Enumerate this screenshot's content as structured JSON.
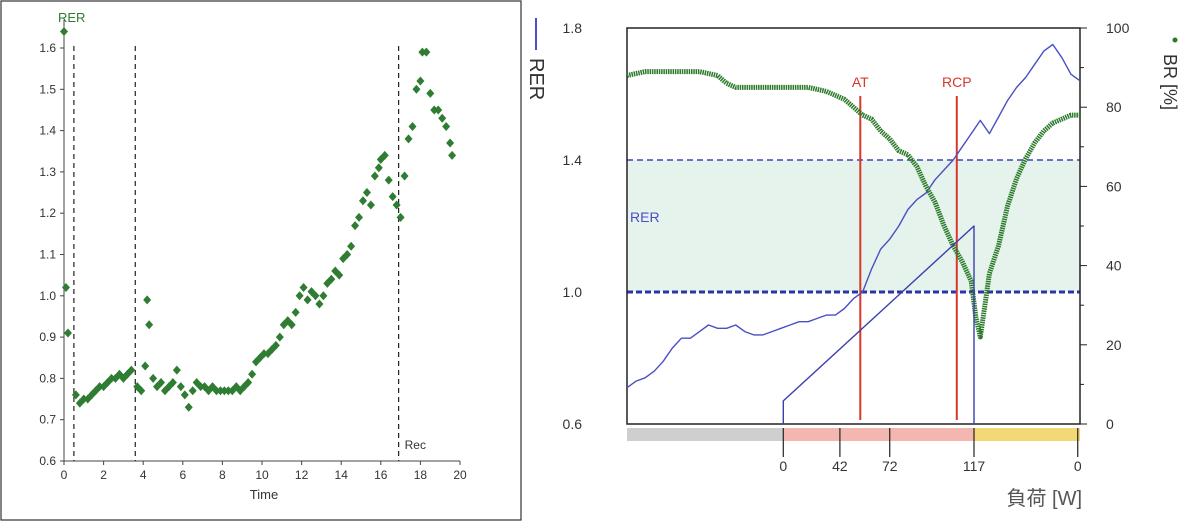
{
  "chart_data": [
    {
      "type": "scatter",
      "title": "",
      "xlabel": "Time",
      "ylabel": "",
      "xlim": [
        0,
        20
      ],
      "ylim": [
        0.6,
        1.65
      ],
      "x_ticks": [
        "0",
        "2",
        "4",
        "6",
        "8",
        "10",
        "12",
        "14",
        "16",
        "18",
        "20"
      ],
      "y_ticks": [
        "0.6",
        "0.7",
        "0.8",
        "0.9",
        "1.0",
        "1.1",
        "1.2",
        "1.3",
        "1.4",
        "1.5",
        "1.6"
      ],
      "series": [
        {
          "name": "RER",
          "color": "#2e7d32",
          "points": [
            [
              0.0,
              1.64
            ],
            [
              0.1,
              1.02
            ],
            [
              0.2,
              0.91
            ],
            [
              0.6,
              0.76
            ],
            [
              0.8,
              0.74
            ],
            [
              1.0,
              0.75
            ],
            [
              1.2,
              0.75
            ],
            [
              1.4,
              0.76
            ],
            [
              1.6,
              0.77
            ],
            [
              1.8,
              0.78
            ],
            [
              2.0,
              0.78
            ],
            [
              2.2,
              0.79
            ],
            [
              2.4,
              0.8
            ],
            [
              2.6,
              0.8
            ],
            [
              2.8,
              0.81
            ],
            [
              3.0,
              0.8
            ],
            [
              3.2,
              0.81
            ],
            [
              3.4,
              0.82
            ],
            [
              3.7,
              0.78
            ],
            [
              3.9,
              0.77
            ],
            [
              4.1,
              0.83
            ],
            [
              4.2,
              0.99
            ],
            [
              4.3,
              0.93
            ],
            [
              4.5,
              0.8
            ],
            [
              4.7,
              0.78
            ],
            [
              4.9,
              0.79
            ],
            [
              5.1,
              0.77
            ],
            [
              5.3,
              0.78
            ],
            [
              5.5,
              0.79
            ],
            [
              5.7,
              0.82
            ],
            [
              5.9,
              0.78
            ],
            [
              6.1,
              0.76
            ],
            [
              6.3,
              0.73
            ],
            [
              6.5,
              0.77
            ],
            [
              6.7,
              0.79
            ],
            [
              6.9,
              0.78
            ],
            [
              7.1,
              0.78
            ],
            [
              7.3,
              0.77
            ],
            [
              7.5,
              0.78
            ],
            [
              7.7,
              0.77
            ],
            [
              7.9,
              0.77
            ],
            [
              8.1,
              0.77
            ],
            [
              8.3,
              0.77
            ],
            [
              8.5,
              0.77
            ],
            [
              8.7,
              0.78
            ],
            [
              8.9,
              0.77
            ],
            [
              9.1,
              0.78
            ],
            [
              9.3,
              0.79
            ],
            [
              9.5,
              0.81
            ],
            [
              9.7,
              0.84
            ],
            [
              9.9,
              0.85
            ],
            [
              10.1,
              0.86
            ],
            [
              10.3,
              0.86
            ],
            [
              10.5,
              0.87
            ],
            [
              10.7,
              0.88
            ],
            [
              10.9,
              0.9
            ],
            [
              11.1,
              0.93
            ],
            [
              11.3,
              0.94
            ],
            [
              11.5,
              0.93
            ],
            [
              11.7,
              0.96
            ],
            [
              11.9,
              1.0
            ],
            [
              12.1,
              1.02
            ],
            [
              12.3,
              0.99
            ],
            [
              12.5,
              1.01
            ],
            [
              12.7,
              1.0
            ],
            [
              12.9,
              0.98
            ],
            [
              13.1,
              1.0
            ],
            [
              13.3,
              1.03
            ],
            [
              13.5,
              1.04
            ],
            [
              13.7,
              1.06
            ],
            [
              13.9,
              1.05
            ],
            [
              14.1,
              1.09
            ],
            [
              14.3,
              1.1
            ],
            [
              14.5,
              1.12
            ],
            [
              14.7,
              1.17
            ],
            [
              14.9,
              1.19
            ],
            [
              15.1,
              1.23
            ],
            [
              15.3,
              1.25
            ],
            [
              15.5,
              1.22
            ],
            [
              15.7,
              1.29
            ],
            [
              15.9,
              1.31
            ],
            [
              16.0,
              1.33
            ],
            [
              16.2,
              1.34
            ],
            [
              16.4,
              1.28
            ],
            [
              16.6,
              1.24
            ],
            [
              16.8,
              1.22
            ],
            [
              17.0,
              1.19
            ],
            [
              17.2,
              1.29
            ],
            [
              17.4,
              1.38
            ],
            [
              17.6,
              1.41
            ],
            [
              17.8,
              1.5
            ],
            [
              18.0,
              1.52
            ],
            [
              18.1,
              1.59
            ],
            [
              18.3,
              1.59
            ],
            [
              18.5,
              1.49
            ],
            [
              18.7,
              1.45
            ],
            [
              18.9,
              1.45
            ],
            [
              19.1,
              1.43
            ],
            [
              19.3,
              1.41
            ],
            [
              19.5,
              1.37
            ],
            [
              19.6,
              1.34
            ]
          ]
        }
      ],
      "vlines": [
        {
          "x": 0.5,
          "label": ""
        },
        {
          "x": 3.6,
          "label": ""
        },
        {
          "x": 16.9,
          "label": "Rec"
        }
      ],
      "series_label": "RER",
      "grid": false
    },
    {
      "type": "line",
      "title": "",
      "xlabel": "負荷 [W]",
      "ylabel_left": "RER",
      "ylabel_right": "BR [%]",
      "ylim_left": [
        0.6,
        1.8
      ],
      "ylim_right": [
        0,
        100
      ],
      "y_ticks_left": [
        "0.6",
        "1.0",
        "1.4",
        "1.8"
      ],
      "y_ticks_right": [
        "0",
        "20",
        "40",
        "60",
        "80",
        "100"
      ],
      "x_ticks": [
        {
          "label": "0",
          "t": 0.345
        },
        {
          "label": "42",
          "t": 0.47
        },
        {
          "label": "72",
          "t": 0.58
        },
        {
          "label": "117",
          "t": 0.766
        },
        {
          "label": "0",
          "t": 0.995
        }
      ],
      "reference_band": {
        "label": "RER",
        "from": 1.0,
        "to": 1.4
      },
      "phase_bar": [
        {
          "from": 0.0,
          "to": 0.345,
          "color": "#cfcfcf"
        },
        {
          "from": 0.345,
          "to": 0.766,
          "color": "#f4b6b0"
        },
        {
          "from": 0.766,
          "to": 1.0,
          "color": "#f3d878"
        }
      ],
      "thresholds": [
        {
          "label": "AT",
          "t": 0.515,
          "color": "#d9362c"
        },
        {
          "label": "RCP",
          "t": 0.728,
          "color": "#d9362c"
        }
      ],
      "series": [
        {
          "name": "RER",
          "axis": "left",
          "color": "#4a4fc4",
          "points": [
            [
              0.0,
              0.71
            ],
            [
              0.02,
              0.73
            ],
            [
              0.04,
              0.74
            ],
            [
              0.06,
              0.76
            ],
            [
              0.08,
              0.79
            ],
            [
              0.1,
              0.83
            ],
            [
              0.12,
              0.86
            ],
            [
              0.14,
              0.86
            ],
            [
              0.16,
              0.88
            ],
            [
              0.18,
              0.9
            ],
            [
              0.2,
              0.89
            ],
            [
              0.22,
              0.89
            ],
            [
              0.24,
              0.9
            ],
            [
              0.26,
              0.88
            ],
            [
              0.28,
              0.87
            ],
            [
              0.3,
              0.87
            ],
            [
              0.32,
              0.88
            ],
            [
              0.34,
              0.89
            ],
            [
              0.36,
              0.9
            ],
            [
              0.38,
              0.91
            ],
            [
              0.4,
              0.91
            ],
            [
              0.42,
              0.92
            ],
            [
              0.44,
              0.93
            ],
            [
              0.46,
              0.93
            ],
            [
              0.48,
              0.95
            ],
            [
              0.5,
              0.98
            ],
            [
              0.52,
              1.0
            ],
            [
              0.54,
              1.07
            ],
            [
              0.56,
              1.13
            ],
            [
              0.58,
              1.16
            ],
            [
              0.6,
              1.2
            ],
            [
              0.62,
              1.25
            ],
            [
              0.64,
              1.28
            ],
            [
              0.66,
              1.3
            ],
            [
              0.68,
              1.34
            ],
            [
              0.7,
              1.37
            ],
            [
              0.72,
              1.4
            ],
            [
              0.74,
              1.44
            ],
            [
              0.76,
              1.48
            ],
            [
              0.78,
              1.52
            ],
            [
              0.8,
              1.48
            ],
            [
              0.82,
              1.53
            ],
            [
              0.84,
              1.58
            ],
            [
              0.86,
              1.62
            ],
            [
              0.88,
              1.65
            ],
            [
              0.9,
              1.69
            ],
            [
              0.92,
              1.73
            ],
            [
              0.94,
              1.75
            ],
            [
              0.96,
              1.71
            ],
            [
              0.98,
              1.66
            ],
            [
              1.0,
              1.64
            ]
          ]
        },
        {
          "name": "BR",
          "axis": "right",
          "color": "#2a7a2a",
          "points": [
            [
              0.0,
              88
            ],
            [
              0.04,
              89
            ],
            [
              0.08,
              89
            ],
            [
              0.12,
              89
            ],
            [
              0.16,
              89
            ],
            [
              0.2,
              88
            ],
            [
              0.22,
              86
            ],
            [
              0.24,
              85
            ],
            [
              0.28,
              85
            ],
            [
              0.32,
              85
            ],
            [
              0.36,
              85
            ],
            [
              0.4,
              85
            ],
            [
              0.44,
              84
            ],
            [
              0.48,
              82
            ],
            [
              0.5,
              80
            ],
            [
              0.52,
              78
            ],
            [
              0.54,
              77
            ],
            [
              0.56,
              74
            ],
            [
              0.58,
              72
            ],
            [
              0.6,
              69
            ],
            [
              0.62,
              68
            ],
            [
              0.64,
              65
            ],
            [
              0.66,
              60
            ],
            [
              0.68,
              56
            ],
            [
              0.7,
              50
            ],
            [
              0.72,
              45
            ],
            [
              0.74,
              41
            ],
            [
              0.76,
              36
            ],
            [
              0.77,
              27
            ],
            [
              0.78,
              22
            ],
            [
              0.79,
              30
            ],
            [
              0.8,
              38
            ],
            [
              0.82,
              45
            ],
            [
              0.84,
              55
            ],
            [
              0.86,
              62
            ],
            [
              0.88,
              67
            ],
            [
              0.9,
              71
            ],
            [
              0.92,
              74
            ],
            [
              0.94,
              76
            ],
            [
              0.96,
              77
            ],
            [
              0.98,
              78
            ],
            [
              1.0,
              78
            ]
          ]
        },
        {
          "name": "load",
          "axis": "left",
          "color": "#3a3fb0",
          "points": [
            [
              0.345,
              0.6
            ],
            [
              0.345,
              0.67
            ],
            [
              0.766,
              1.2
            ],
            [
              0.766,
              0.6
            ]
          ]
        }
      ],
      "grid": false
    }
  ]
}
